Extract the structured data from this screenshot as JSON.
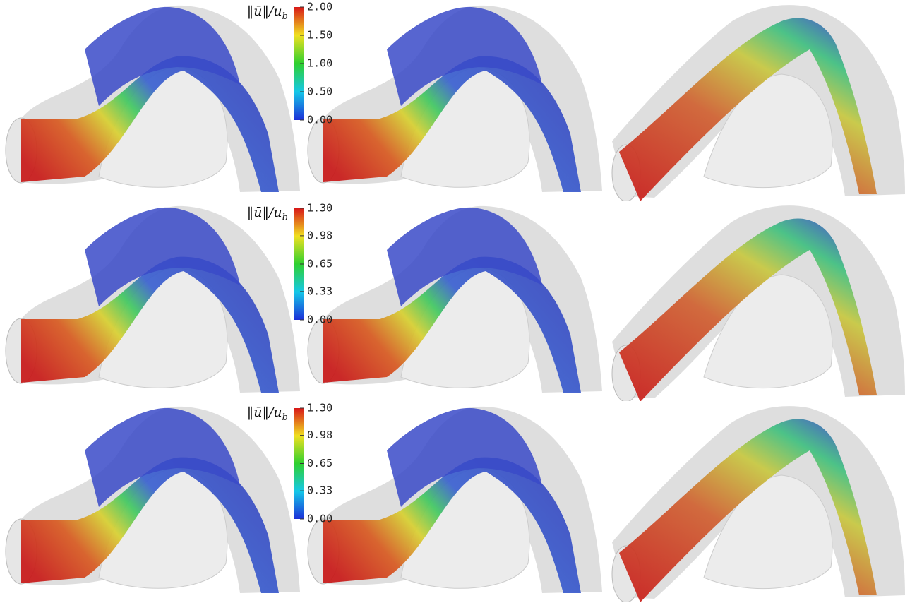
{
  "colorbars": [
    {
      "label": "‖ū‖/u",
      "label_subscript": "b",
      "ticks": [
        {
          "value": 2,
          "label": "2.00"
        },
        {
          "value": 1.5,
          "label": "1.50"
        },
        {
          "value": 1,
          "label": "1.00"
        },
        {
          "value": 0.5,
          "label": "0.50"
        },
        {
          "value": 0,
          "label": "0.00"
        }
      ]
    },
    {
      "label": "‖ū‖/u",
      "label_subscript": "b",
      "ticks": [
        {
          "value": 1.3,
          "label": "1.30"
        },
        0.98,
        0.65,
        0.33,
        {
          "value": 0,
          "label": "0.00"
        }
      ]
    },
    {
      "label": "‖ū‖/u",
      "label_subscript": "b",
      "ticks": [
        {
          "value": 1.3,
          "label": "1.30"
        },
        0.98,
        0.65,
        0.33,
        {
          "value": 0,
          "label": "0.00"
        }
      ]
    }
  ]
}
